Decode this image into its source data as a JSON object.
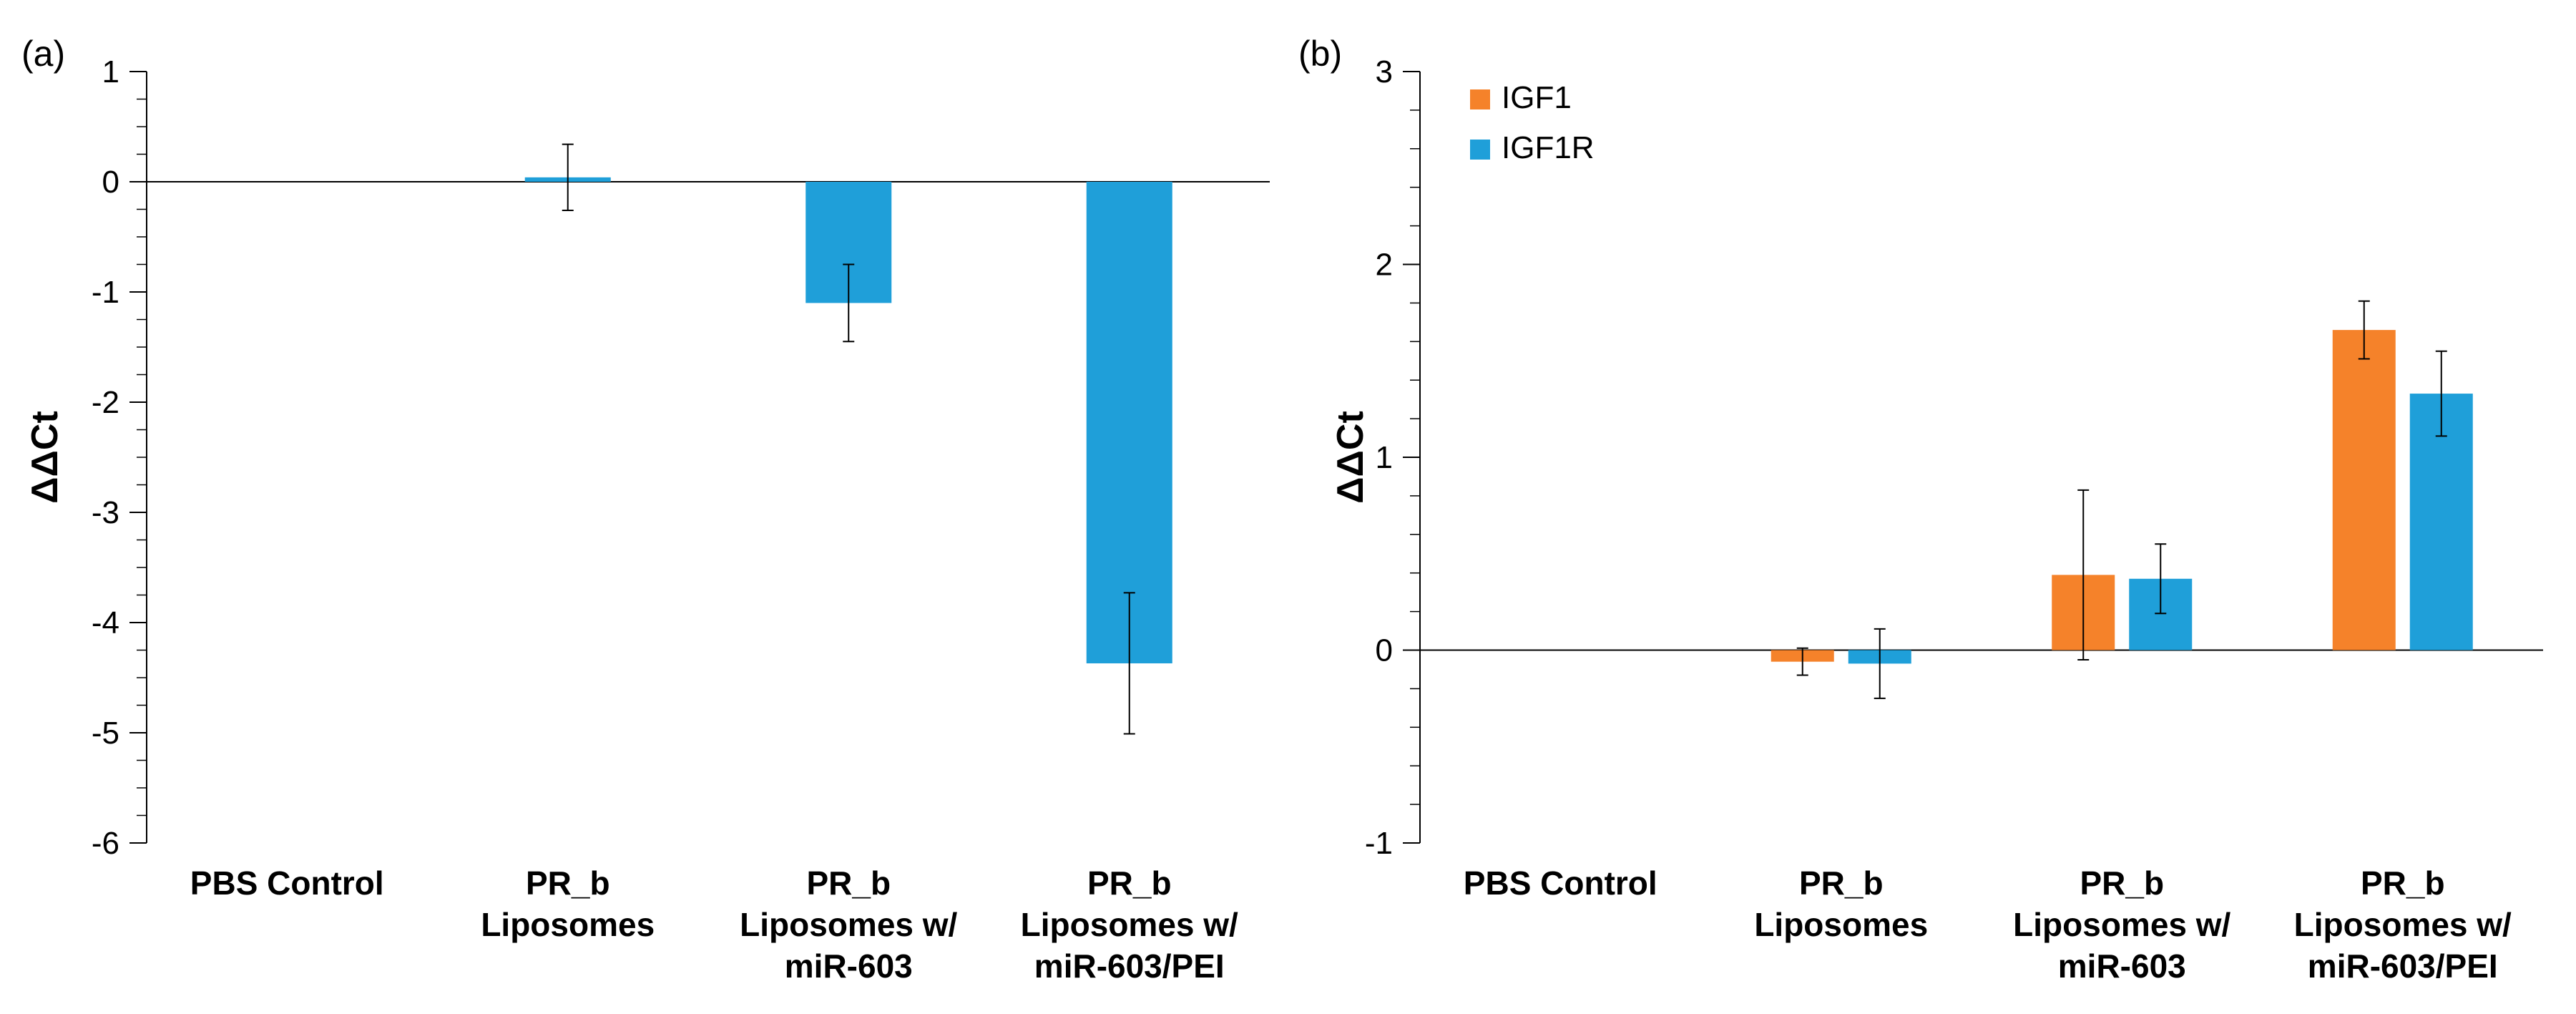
{
  "chart_data": [
    {
      "type": "bar",
      "panel_label": "(a)",
      "title": "",
      "xlabel": "",
      "ylabel": "ΔΔCt",
      "ylim": [
        -6,
        1
      ],
      "yticks": [
        1,
        0,
        -1,
        -2,
        -3,
        -4,
        -5,
        -6
      ],
      "categories": [
        [
          "PBS Control"
        ],
        [
          "PR_b",
          "Liposomes"
        ],
        [
          "PR_b",
          "Liposomes w/",
          "miR-603"
        ],
        [
          "PR_b",
          "Liposomes w/",
          "miR-603/PEI"
        ]
      ],
      "series": [
        {
          "name": "",
          "color": "#1f9fd9",
          "values": [
            null,
            0.04,
            -1.1,
            -4.37
          ],
          "errors": [
            null,
            0.3,
            0.35,
            0.64
          ]
        }
      ]
    },
    {
      "type": "bar",
      "panel_label": "(b)",
      "title": "",
      "xlabel": "",
      "ylabel": "ΔΔCt",
      "ylim": [
        -1,
        3
      ],
      "yticks": [
        3,
        2,
        1,
        0,
        -1
      ],
      "legend_position": "top-left",
      "categories": [
        [
          "PBS Control"
        ],
        [
          "PR_b",
          "Liposomes"
        ],
        [
          "PR_b",
          "Liposomes w/",
          "miR-603"
        ],
        [
          "PR_b",
          "Liposomes w/",
          "miR-603/PEI"
        ]
      ],
      "series": [
        {
          "name": "IGF1",
          "color": "#f5822a",
          "values": [
            null,
            -0.06,
            0.39,
            1.66
          ],
          "errors": [
            null,
            0.07,
            0.44,
            0.15
          ]
        },
        {
          "name": "IGF1R",
          "color": "#1f9fd9",
          "values": [
            null,
            -0.07,
            0.37,
            1.33
          ],
          "errors": [
            null,
            0.18,
            0.18,
            0.22
          ]
        }
      ]
    }
  ]
}
